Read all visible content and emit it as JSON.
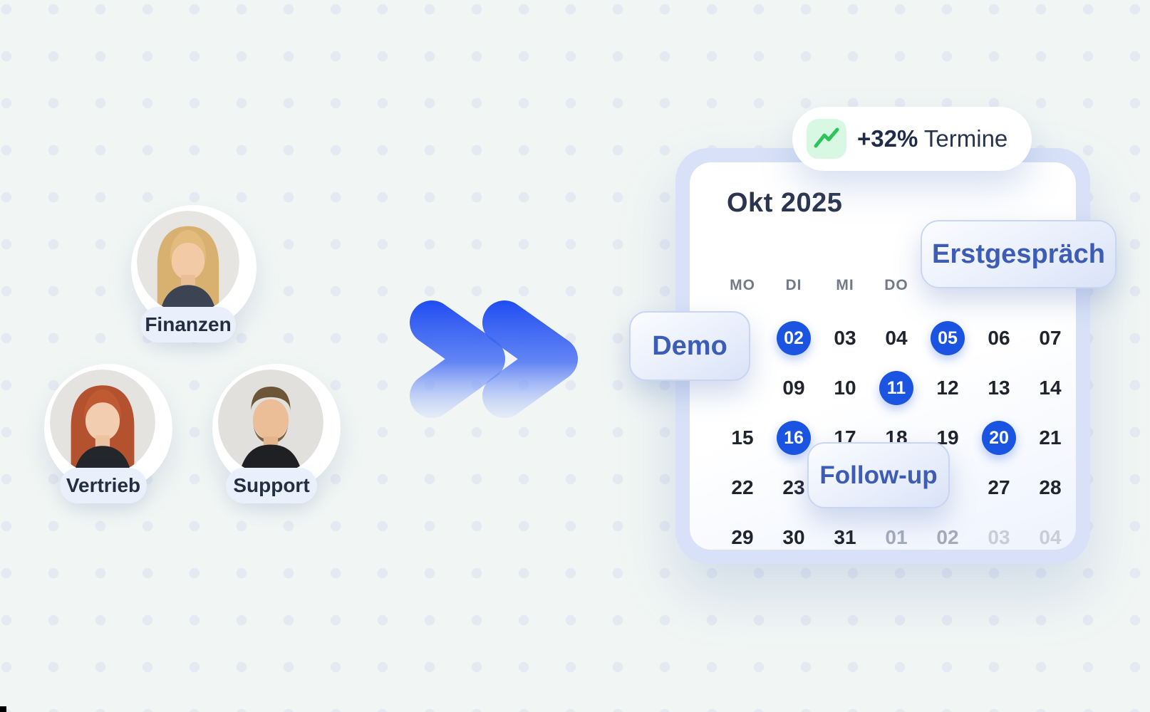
{
  "background": {
    "base_color": "#f1f6f4",
    "dot_color": "#e5eaf2"
  },
  "team": {
    "members": [
      {
        "label": "Finanzen",
        "avatar": "woman-blonde"
      },
      {
        "label": "Vertrieb",
        "avatar": "woman-redhead"
      },
      {
        "label": "Support",
        "avatar": "man-beard"
      }
    ]
  },
  "flow_arrow": {
    "type": "double-chevron-right",
    "color_top": "#1c4af1",
    "color_bottom_fade": "#dfe9fc"
  },
  "stat_badge": {
    "value": "+32%",
    "label": " Termine",
    "trend_icon": "trend-up-icon",
    "trend_icon_color": "#2fc35c",
    "trend_icon_bg": "#d9f8e4"
  },
  "calendar": {
    "title": "Okt 2025",
    "day_headers": [
      "MO",
      "DI",
      "MI",
      "DO",
      "",
      "",
      ""
    ],
    "weeks": [
      [
        {
          "v": ""
        },
        {
          "v": "02",
          "event": true
        },
        {
          "v": "03"
        },
        {
          "v": "04"
        },
        {
          "v": "05",
          "event": true
        },
        {
          "v": "06"
        },
        {
          "v": "07"
        }
      ],
      [
        {
          "v": ""
        },
        {
          "v": "09"
        },
        {
          "v": "10"
        },
        {
          "v": "11",
          "event": true
        },
        {
          "v": "12"
        },
        {
          "v": "13"
        },
        {
          "v": "14"
        }
      ],
      [
        {
          "v": "15"
        },
        {
          "v": "16",
          "event": true
        },
        {
          "v": "17"
        },
        {
          "v": "18"
        },
        {
          "v": "19"
        },
        {
          "v": "20",
          "event": true
        },
        {
          "v": "21"
        }
      ],
      [
        {
          "v": "22"
        },
        {
          "v": "23"
        },
        {
          "v": ""
        },
        {
          "v": ""
        },
        {
          "v": ""
        },
        {
          "v": "27"
        },
        {
          "v": "28"
        }
      ],
      [
        {
          "v": "29"
        },
        {
          "v": "30"
        },
        {
          "v": "31"
        },
        {
          "v": "01",
          "muted": 1
        },
        {
          "v": "02",
          "muted": 1
        },
        {
          "v": "03",
          "muted": 2
        },
        {
          "v": "04",
          "muted": 2
        }
      ]
    ],
    "event_color": "#1a54e0",
    "event_badges": [
      {
        "label": "Erstgespräch"
      },
      {
        "label": "Demo"
      },
      {
        "label": "Follow-up"
      }
    ]
  }
}
